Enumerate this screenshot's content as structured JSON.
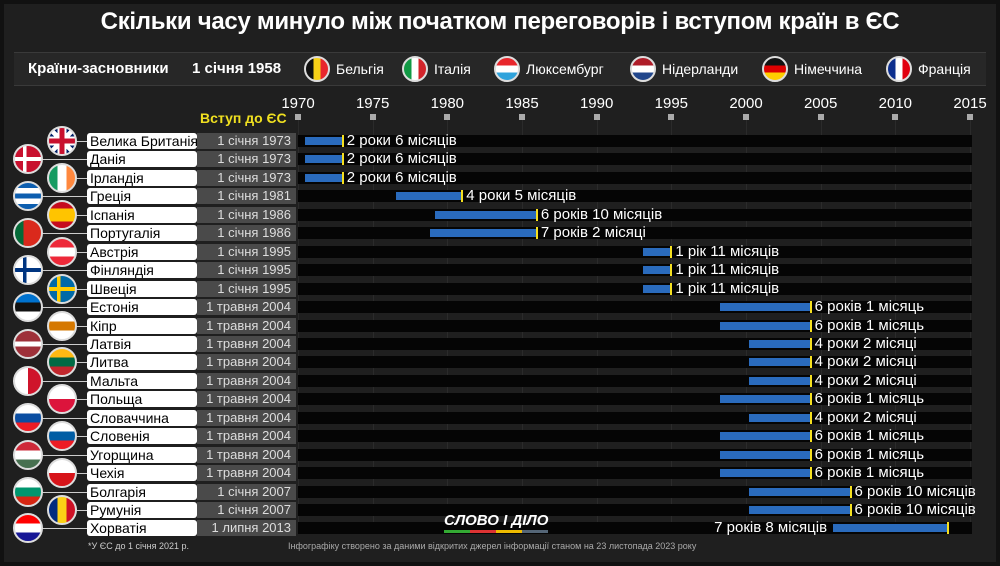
{
  "title": "Скільки часу минуло між початком переговорів і вступом країн в ЄС",
  "founders": {
    "label": "Країни-засновники",
    "date": "1 січня 1958",
    "countries": [
      {
        "name": "Бельгія",
        "flag": {
          "type": "v",
          "colors": [
            "#111",
            "#f7d117",
            "#e8262c"
          ]
        }
      },
      {
        "name": "Італія",
        "flag": {
          "type": "v",
          "colors": [
            "#119944",
            "#fff",
            "#d2232a"
          ]
        }
      },
      {
        "name": "Люксембург",
        "flag": {
          "type": "h",
          "colors": [
            "#e8262c",
            "#fff",
            "#2fa3dc"
          ]
        }
      },
      {
        "name": "Нідерланди",
        "flag": {
          "type": "h",
          "colors": [
            "#ae1c28",
            "#fff",
            "#21468b"
          ]
        }
      },
      {
        "name": "Німеччина",
        "flag": {
          "type": "h",
          "colors": [
            "#111",
            "#dd0000",
            "#ffce00"
          ]
        }
      },
      {
        "name": "Франція",
        "flag": {
          "type": "v",
          "colors": [
            "#0d2f8e",
            "#fff",
            "#e1000f"
          ]
        }
      }
    ]
  },
  "join_label": "Вступ до ЄС",
  "chart_data": {
    "type": "bar",
    "subtype": "gantt-range",
    "xlim": [
      1970,
      2015
    ],
    "ticks": [
      1970,
      1975,
      1980,
      1985,
      1990,
      1995,
      2000,
      2005,
      2010,
      2015
    ],
    "colors": {
      "bar": "#2a6bbd",
      "join_marker": "#f5e020"
    },
    "rows": [
      {
        "country": "Велика Британія*",
        "date": "1 січня 1973",
        "duration": "2 роки 6 місяців",
        "start": 1970.5,
        "end": 1973.0,
        "flag": {
          "type": "uk",
          "colors": [
            "#012169",
            "#fff",
            "#c8102e"
          ]
        }
      },
      {
        "country": "Данія",
        "date": "1 січня 1973",
        "duration": "2 роки 6 місяців",
        "start": 1970.5,
        "end": 1973.0,
        "flag": {
          "type": "cross",
          "colors": [
            "#c8102e",
            "#fff"
          ]
        }
      },
      {
        "country": "Ірландія",
        "date": "1 січня 1973",
        "duration": "2 роки 6 місяців",
        "start": 1970.5,
        "end": 1973.0,
        "flag": {
          "type": "v",
          "colors": [
            "#169b62",
            "#fff",
            "#ff883e"
          ]
        }
      },
      {
        "country": "Греція",
        "date": "1 січня 1981",
        "duration": "4 роки 5 місяців",
        "start": 1976.58,
        "end": 1981.0,
        "flag": {
          "type": "h",
          "colors": [
            "#0d5eaf",
            "#fff",
            "#0d5eaf",
            "#fff",
            "#0d5eaf"
          ]
        }
      },
      {
        "country": "Іспанія",
        "date": "1 січня 1986",
        "duration": "6 років 10 місяців",
        "start": 1979.17,
        "end": 1986.0,
        "flag": {
          "type": "h",
          "colors": [
            "#c60b1e",
            "#ffc400",
            "#ffc400",
            "#c60b1e"
          ]
        }
      },
      {
        "country": "Португалія",
        "date": "1 січня 1986",
        "duration": "7 років 2 місяці",
        "start": 1978.83,
        "end": 1986.0,
        "flag": {
          "type": "v",
          "colors": [
            "#046a38",
            "#da291c",
            "#da291c"
          ]
        }
      },
      {
        "country": "Австрія",
        "date": "1 січня 1995",
        "duration": "1 рік 11 місяців",
        "start": 1993.08,
        "end": 1995.0,
        "flag": {
          "type": "h",
          "colors": [
            "#ed2939",
            "#fff",
            "#ed2939"
          ]
        }
      },
      {
        "country": "Фінляндія",
        "date": "1 січня 1995",
        "duration": "1 рік 11 місяців",
        "start": 1993.08,
        "end": 1995.0,
        "flag": {
          "type": "cross",
          "colors": [
            "#fff",
            "#003580"
          ]
        }
      },
      {
        "country": "Швеція",
        "date": "1 січня 1995",
        "duration": "1 рік 11 місяців",
        "start": 1993.08,
        "end": 1995.0,
        "flag": {
          "type": "cross",
          "colors": [
            "#006aa7",
            "#fecc00"
          ]
        }
      },
      {
        "country": "Естонія",
        "date": "1 травня 2004",
        "duration": "6 років 1 місяць",
        "start": 1998.25,
        "end": 2004.33,
        "flag": {
          "type": "h",
          "colors": [
            "#0072ce",
            "#111",
            "#fff"
          ]
        }
      },
      {
        "country": "Кіпр",
        "date": "1 травня 2004",
        "duration": "6 років 1 місяць",
        "start": 1998.25,
        "end": 2004.33,
        "flag": {
          "type": "h",
          "colors": [
            "#fff",
            "#d57800",
            "#fff"
          ]
        }
      },
      {
        "country": "Латвія",
        "date": "1 травня 2004",
        "duration": "4 роки 2 місяці",
        "start": 2000.17,
        "end": 2004.33,
        "flag": {
          "type": "h",
          "colors": [
            "#9e3039",
            "#9e3039",
            "#fff",
            "#9e3039",
            "#9e3039"
          ]
        }
      },
      {
        "country": "Литва",
        "date": "1 травня 2004",
        "duration": "4 роки 2 місяці",
        "start": 2000.17,
        "end": 2004.33,
        "flag": {
          "type": "h",
          "colors": [
            "#fdb913",
            "#006a44",
            "#c1272d"
          ]
        }
      },
      {
        "country": "Мальта",
        "date": "1 травня 2004",
        "duration": "4 роки 2 місяці",
        "start": 2000.17,
        "end": 2004.33,
        "flag": {
          "type": "v",
          "colors": [
            "#fff",
            "#cf142b"
          ]
        }
      },
      {
        "country": "Польща",
        "date": "1 травня 2004",
        "duration": "6 років 1 місяць",
        "start": 1998.25,
        "end": 2004.33,
        "flag": {
          "type": "h",
          "colors": [
            "#fff",
            "#dc143c"
          ]
        }
      },
      {
        "country": "Словаччина",
        "date": "1 травня 2004",
        "duration": "4 роки 2 місяці",
        "start": 2000.17,
        "end": 2004.33,
        "flag": {
          "type": "h",
          "colors": [
            "#fff",
            "#0b4ea2",
            "#ee1c25"
          ]
        }
      },
      {
        "country": "Словенія",
        "date": "1 травня 2004",
        "duration": "6 років 1 місяць",
        "start": 1998.25,
        "end": 2004.33,
        "flag": {
          "type": "h",
          "colors": [
            "#fff",
            "#005da4",
            "#ed1c24"
          ]
        }
      },
      {
        "country": "Угорщина",
        "date": "1 травня 2004",
        "duration": "6 років 1 місяць",
        "start": 1998.25,
        "end": 2004.33,
        "flag": {
          "type": "h",
          "colors": [
            "#ce2939",
            "#fff",
            "#477050"
          ]
        }
      },
      {
        "country": "Чехія",
        "date": "1 травня 2004",
        "duration": "6 років 1 місяць",
        "start": 1998.25,
        "end": 2004.33,
        "flag": {
          "type": "h",
          "colors": [
            "#fff",
            "#d7141a"
          ]
        }
      },
      {
        "country": "Болгарія",
        "date": "1 січня 2007",
        "duration": "6 років 10 місяців",
        "start": 2000.17,
        "end": 2007.0,
        "flag": {
          "type": "h",
          "colors": [
            "#fff",
            "#00966e",
            "#d62612"
          ]
        }
      },
      {
        "country": "Румунія",
        "date": "1 січня 2007",
        "duration": "6 років 10 місяців",
        "start": 2000.17,
        "end": 2007.0,
        "flag": {
          "type": "v",
          "colors": [
            "#002b7f",
            "#fcd116",
            "#ce1126"
          ]
        }
      },
      {
        "country": "Хорватія",
        "date": "1 липня 2013",
        "duration": "7 років 8 місяців",
        "start": 2005.83,
        "end": 2013.5,
        "flag": {
          "type": "h",
          "colors": [
            "#ff0000",
            "#fff",
            "#171796"
          ]
        }
      }
    ]
  },
  "logo": "СЛОВО І ДІЛО",
  "footnote": "*У ЄС до 1 січня 2021 р.",
  "source": "Інфографіку створено за даними відкритих джерел інформації станом на 23 листопада 2023 року"
}
